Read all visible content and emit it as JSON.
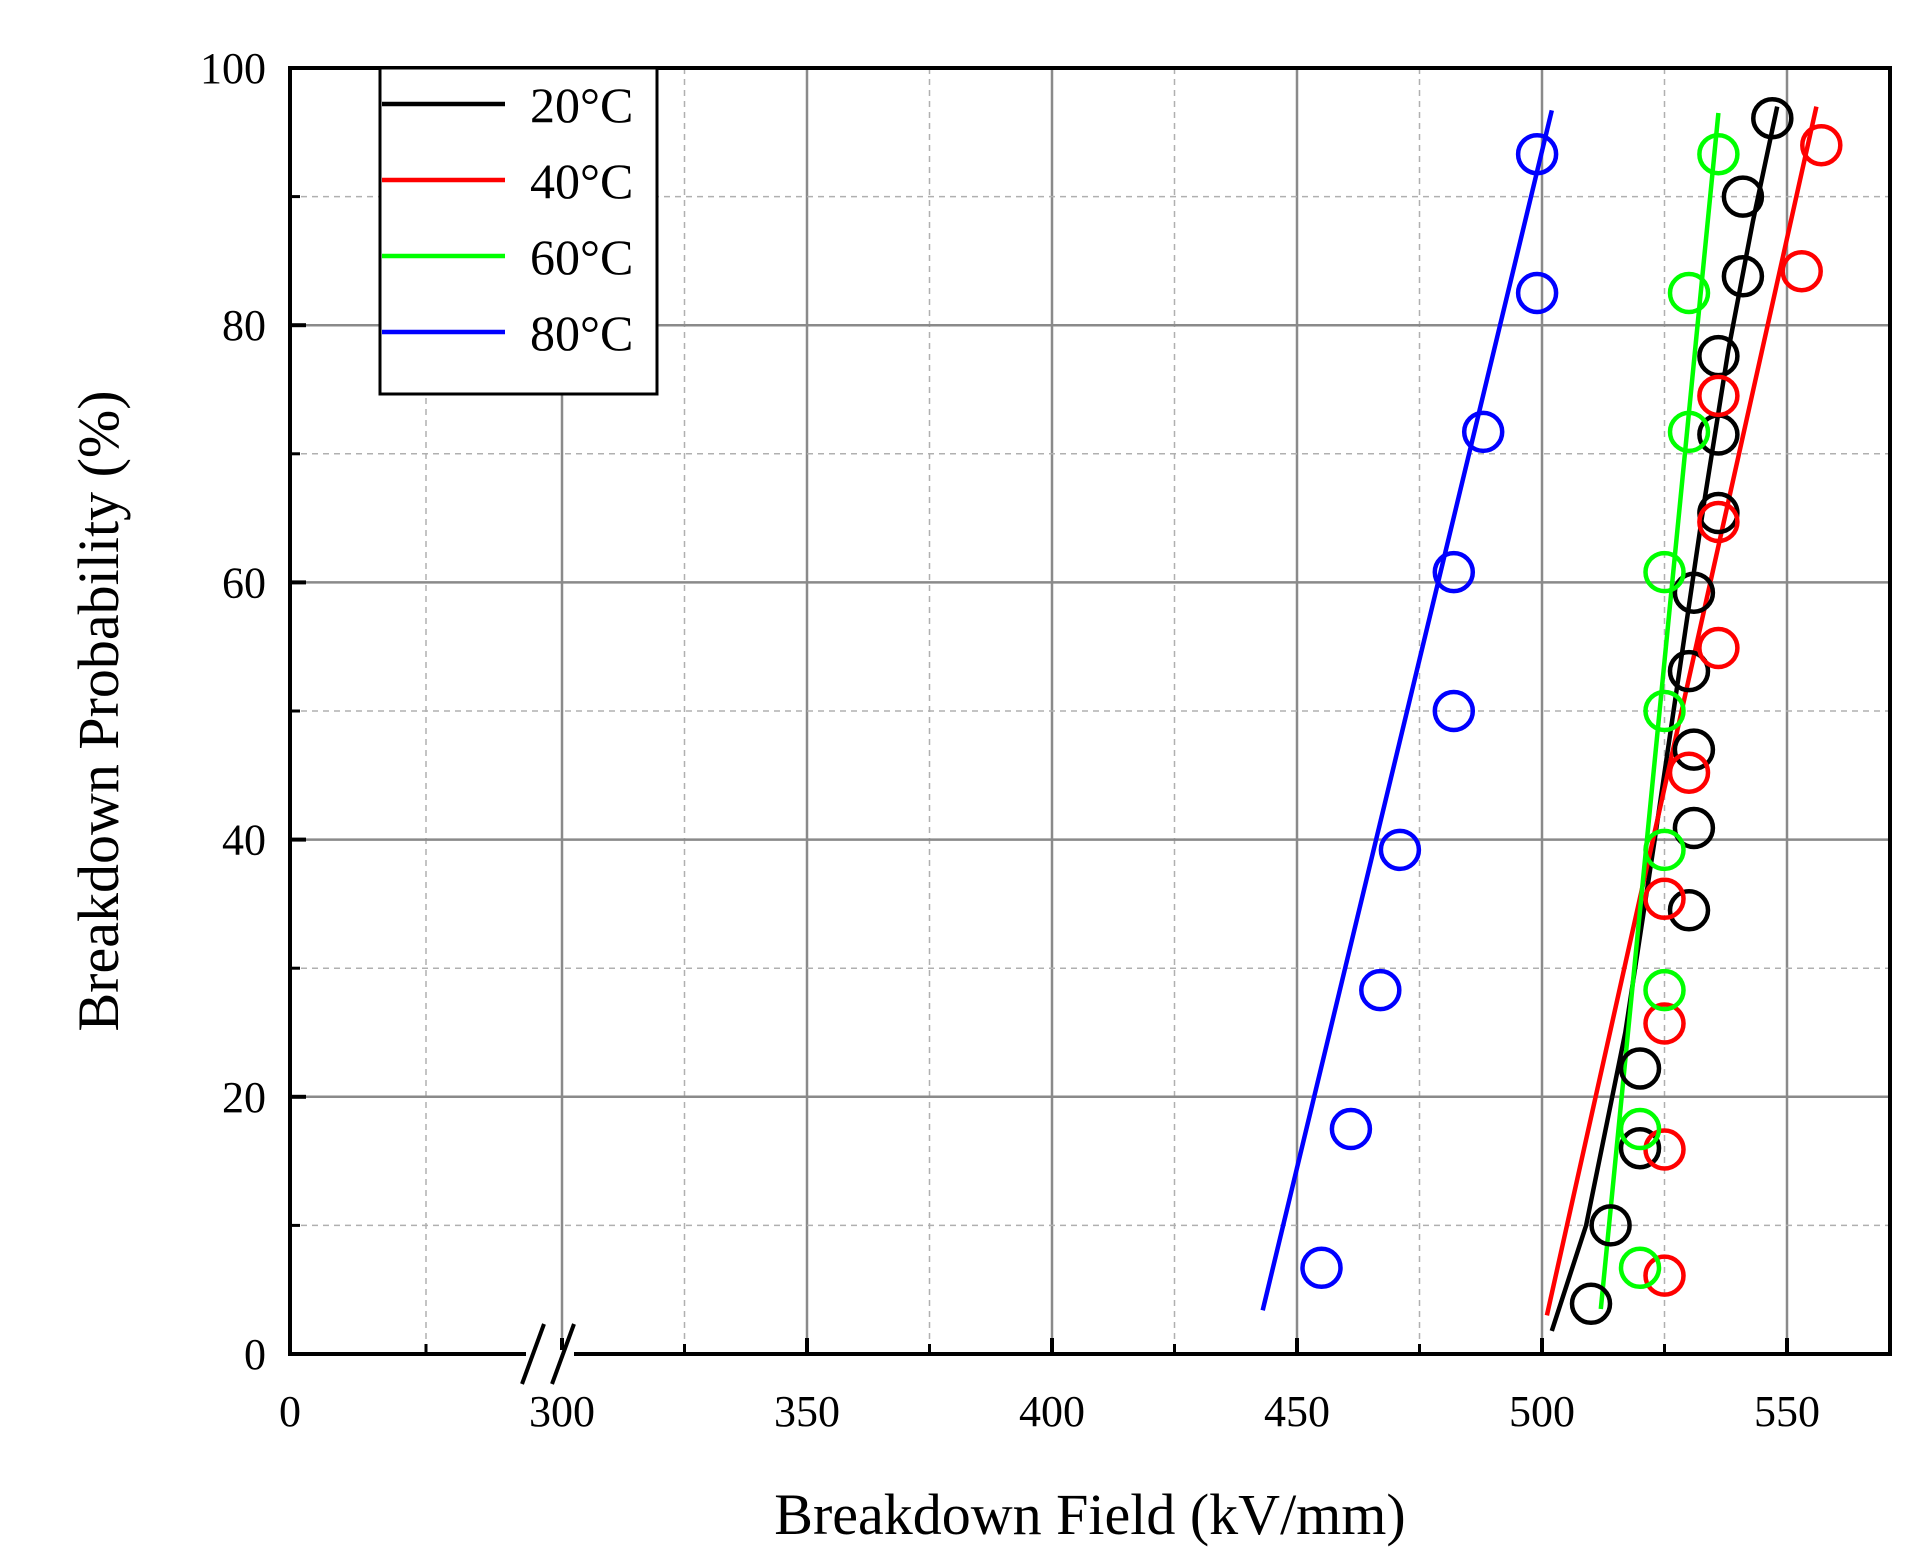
{
  "chart_data": {
    "type": "scatter",
    "title": "",
    "xlabel": "Breakdown Field (kV/mm)",
    "ylabel": "Breakdown Probability (%)",
    "x_axis_break": {
      "from": 0,
      "to": 300,
      "style": "double-slash"
    },
    "xlim": [
      0,
      570
    ],
    "ylim": [
      0,
      100
    ],
    "xticks": [
      {
        "value": 0,
        "label": "0"
      },
      {
        "value": 300,
        "label": "300"
      },
      {
        "value": 350,
        "label": "350"
      },
      {
        "value": 400,
        "label": "400"
      },
      {
        "value": 450,
        "label": "450"
      },
      {
        "value": 500,
        "label": "500"
      },
      {
        "value": 550,
        "label": "550"
      }
    ],
    "xticks_minor": [
      150,
      325,
      375,
      425,
      475,
      525
    ],
    "yticks": [
      {
        "value": 0,
        "label": "0"
      },
      {
        "value": 20,
        "label": "20"
      },
      {
        "value": 40,
        "label": "40"
      },
      {
        "value": 60,
        "label": "60"
      },
      {
        "value": 80,
        "label": "80"
      },
      {
        "value": 100,
        "label": "100"
      }
    ],
    "yticks_minor": [
      10,
      30,
      50,
      70,
      90
    ],
    "grid": true,
    "legend_position": "top-left",
    "series": [
      {
        "name": "20°C",
        "color": "#000000",
        "points": [
          [
            510,
            3.9
          ],
          [
            514,
            10
          ],
          [
            520,
            16
          ],
          [
            520,
            22.2
          ],
          [
            530,
            34.5
          ],
          [
            531,
            40.9
          ],
          [
            531,
            47
          ],
          [
            530,
            53.1
          ],
          [
            531,
            59.2
          ],
          [
            536,
            65.4
          ],
          [
            536,
            71.5
          ],
          [
            536,
            77.6
          ],
          [
            541,
            83.8
          ],
          [
            541,
            90
          ],
          [
            547,
            96.1
          ]
        ],
        "fit": [
          [
            502,
            1.8
          ],
          [
            509,
            10
          ],
          [
            517,
            25
          ],
          [
            523,
            40
          ],
          [
            528,
            53
          ],
          [
            533,
            66
          ],
          [
            538,
            78
          ],
          [
            543,
            88
          ],
          [
            548,
            97
          ]
        ]
      },
      {
        "name": "40°C",
        "color": "#ff0000",
        "points": [
          [
            525,
            6.1
          ],
          [
            525,
            15.9
          ],
          [
            525,
            25.7
          ],
          [
            525,
            35.4
          ],
          [
            530,
            45.2
          ],
          [
            536,
            54.9
          ],
          [
            536,
            64.7
          ],
          [
            536,
            74.5
          ],
          [
            553,
            84.2
          ],
          [
            557,
            94
          ]
        ],
        "fit": [
          [
            501,
            3
          ],
          [
            556,
            97
          ]
        ]
      },
      {
        "name": "60°C",
        "color": "#00ff00",
        "points": [
          [
            520,
            6.7
          ],
          [
            520,
            17.5
          ],
          [
            525,
            28.3
          ],
          [
            525,
            39.2
          ],
          [
            525,
            50
          ],
          [
            525,
            60.8
          ],
          [
            530,
            71.7
          ],
          [
            530,
            82.5
          ],
          [
            536,
            93.3
          ]
        ],
        "fit": [
          [
            512,
            3.5
          ],
          [
            536,
            96.5
          ]
        ]
      },
      {
        "name": "80°C",
        "color": "#0000ff",
        "points": [
          [
            455,
            6.7
          ],
          [
            461,
            17.5
          ],
          [
            467,
            28.3
          ],
          [
            471,
            39.2
          ],
          [
            482,
            50
          ],
          [
            482,
            60.8
          ],
          [
            488,
            71.7
          ],
          [
            499,
            82.5
          ],
          [
            499,
            93.3
          ]
        ],
        "fit": [
          [
            443,
            3.4
          ],
          [
            502,
            96.7
          ]
        ]
      }
    ]
  }
}
